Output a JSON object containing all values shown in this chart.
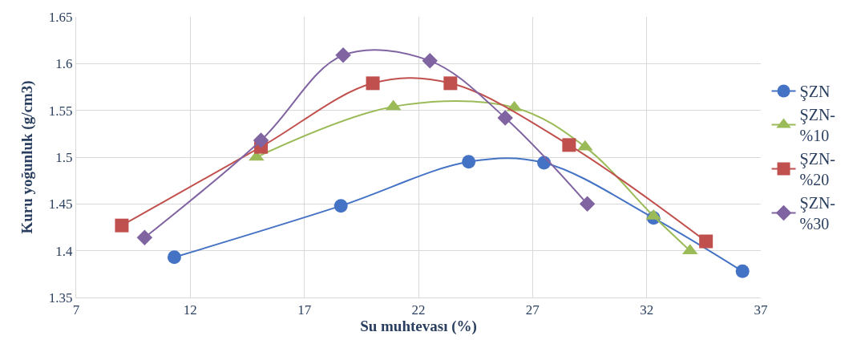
{
  "chart_data": {
    "type": "line",
    "xlabel": "Su muhtevası (%)",
    "ylabel": "Kuru yoğunluk (g/cm3)",
    "xlim": [
      7,
      37
    ],
    "ylim": [
      1.35,
      1.65
    ],
    "xticks": [
      7,
      12,
      17,
      22,
      27,
      32,
      37
    ],
    "yticks": [
      1.35,
      1.4,
      1.45,
      1.5,
      1.55,
      1.6,
      1.65
    ],
    "grid": true,
    "legend": "right",
    "line_style": "solid",
    "series": [
      {
        "name": "ŞZN",
        "color": "#4472c4",
        "marker": "circle",
        "x": [
          11.3,
          18.6,
          24.2,
          27.5,
          32.3,
          36.2
        ],
        "values": [
          1.393,
          1.448,
          1.495,
          1.494,
          1.435,
          1.378
        ]
      },
      {
        "name": "ŞZN-%10",
        "color": "#9bbb59",
        "marker": "triangle",
        "x": [
          14.9,
          20.9,
          26.2,
          29.3,
          32.3,
          33.9
        ],
        "values": [
          1.5,
          1.554,
          1.553,
          1.511,
          1.437,
          1.4
        ]
      },
      {
        "name": "ŞZN-%20",
        "color": "#c0504d",
        "marker": "square",
        "x": [
          9.0,
          15.1,
          20.0,
          23.4,
          28.6,
          34.6
        ],
        "values": [
          1.427,
          1.511,
          1.579,
          1.579,
          1.513,
          1.41
        ]
      },
      {
        "name": "ŞZN-%30",
        "color": "#8064a2",
        "marker": "diamond",
        "x": [
          10.0,
          15.1,
          18.7,
          22.5,
          25.8,
          29.4
        ],
        "values": [
          1.414,
          1.518,
          1.609,
          1.603,
          1.542,
          1.45
        ]
      }
    ]
  }
}
